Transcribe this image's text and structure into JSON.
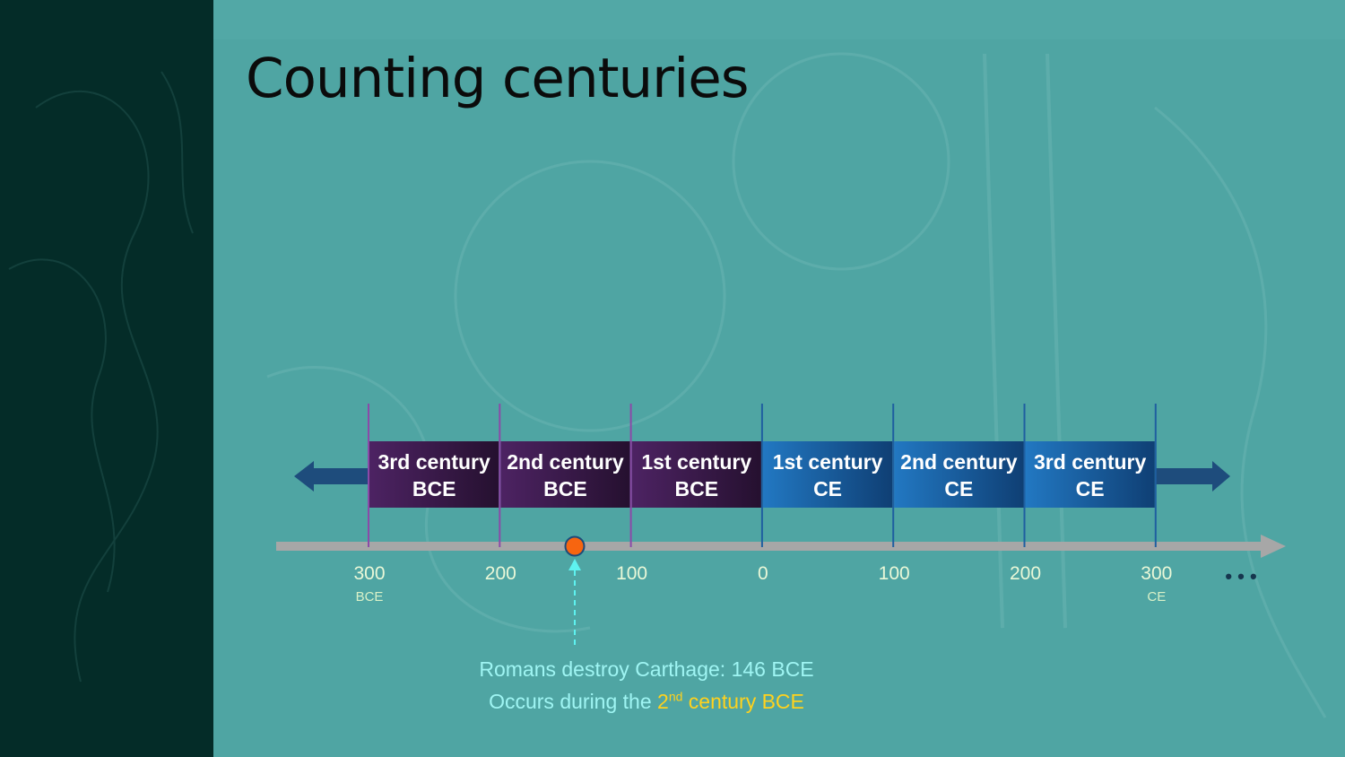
{
  "slide": {
    "title": "Counting centuries"
  },
  "timeline": {
    "centuries": [
      {
        "label_1": "3rd century",
        "label_2": "BCE",
        "era": "BCE"
      },
      {
        "label_1": "2nd century",
        "label_2": "BCE",
        "era": "BCE"
      },
      {
        "label_1": "1st century",
        "label_2": "BCE",
        "era": "BCE"
      },
      {
        "label_1": "1st century",
        "label_2": "CE",
        "era": "CE"
      },
      {
        "label_1": "2nd century",
        "label_2": "CE",
        "era": "CE"
      },
      {
        "label_1": "3rd century",
        "label_2": "CE",
        "era": "CE"
      }
    ],
    "ticks": [
      {
        "label": "300",
        "era": "BCE"
      },
      {
        "label": "200",
        "era": ""
      },
      {
        "label": "100",
        "era": ""
      },
      {
        "label": "0",
        "era": ""
      },
      {
        "label": "100",
        "era": ""
      },
      {
        "label": "200",
        "era": ""
      },
      {
        "label": "300",
        "era": "CE"
      }
    ],
    "ellipsis": "• • •",
    "event_year_bce": 146,
    "colors": {
      "bce_box": "#3a1a4d",
      "ce_box": "#1a68aa",
      "axis": "#a7a7a7",
      "event_marker": "#f76510",
      "pointer": "#5ef2f0",
      "highlight": "#ffd21d"
    }
  },
  "annotation": {
    "line1": "Romans destroy Carthage: 146 BCE",
    "line2_prefix": "Occurs during the ",
    "line2_num": "2",
    "line2_sup": "nd",
    "line2_suffix": " century BCE"
  }
}
